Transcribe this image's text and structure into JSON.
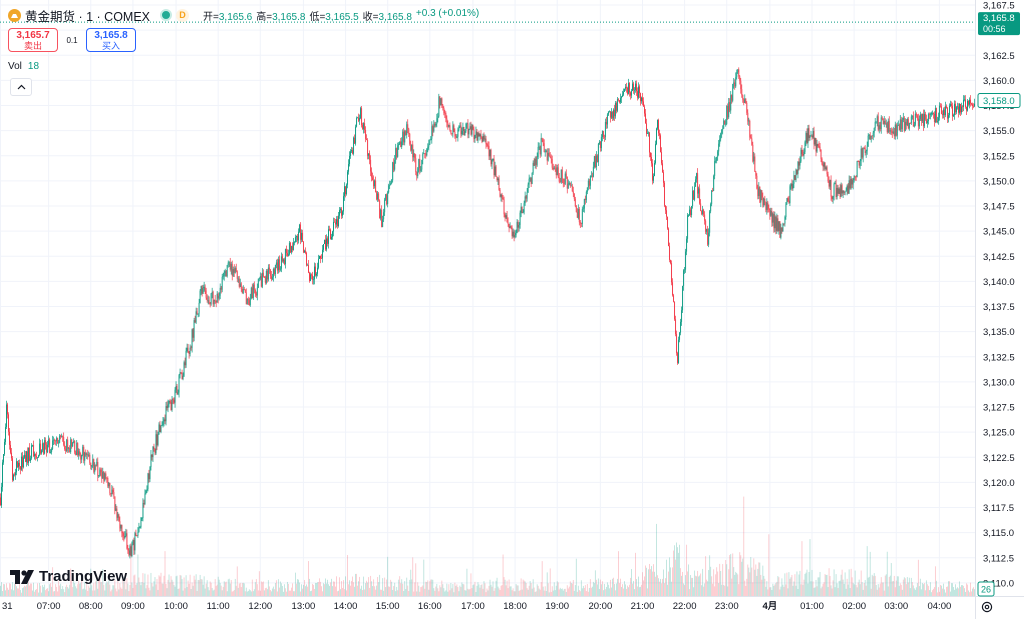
{
  "header": {
    "title": "黄金期货 · 1 · COMEX",
    "open_label": "开=",
    "open": "3,165.6",
    "high_label": "高=",
    "high": "3,165.8",
    "low_label": "低=",
    "low": "3,165.5",
    "close_label": "收=",
    "close": "3,165.8",
    "change": "+0.3 (+0.01%)",
    "status_badge": "D"
  },
  "trade": {
    "sell_price": "3,165.7",
    "sell_label": "卖出",
    "spread": "0.1",
    "buy_price": "3,165.8",
    "buy_label": "买入"
  },
  "volume": {
    "label": "Vol",
    "value": "18",
    "badge": "26"
  },
  "brand": "TradingView",
  "price_tags": {
    "last": "3,165.8",
    "countdown": "00:56",
    "marker": "3,158.0"
  },
  "colors": {
    "up": "#089981",
    "down": "#f23645",
    "last_tag": "#089981",
    "grid": "#f0f3fa"
  },
  "chart_data": {
    "type": "candlestick",
    "grid": true,
    "y_axis_position": "right",
    "ylim": [
      3108.7,
      3168.0
    ],
    "yticks": [
      "3,110.0",
      "3,112.5",
      "3,115.0",
      "3,117.5",
      "3,120.0",
      "3,122.5",
      "3,125.0",
      "3,127.5",
      "3,130.0",
      "3,132.5",
      "3,135.0",
      "3,137.5",
      "3,140.0",
      "3,142.5",
      "3,145.0",
      "3,147.5",
      "3,150.0",
      "3,152.5",
      "3,155.0",
      "3,157.5",
      "3,160.0",
      "3,162.5",
      "3,165.0",
      "3,167.5"
    ],
    "xticks": [
      "31",
      "07:00",
      "08:00",
      "09:00",
      "10:00",
      "11:00",
      "12:00",
      "13:00",
      "14:00",
      "15:00",
      "16:00",
      "17:00",
      "18:00",
      "19:00",
      "20:00",
      "21:00",
      "22:00",
      "23:00",
      "4月",
      "01:00",
      "02:00",
      "03:00",
      "04:00"
    ],
    "xtick_index": [
      0,
      48,
      90,
      132,
      175,
      217,
      259,
      302,
      344,
      386,
      428,
      471,
      513,
      555,
      598,
      640,
      682,
      724,
      767,
      809,
      851,
      893,
      936
    ],
    "bar_count": 972,
    "price_path": [
      [
        0,
        3118.5
      ],
      [
        6,
        3127
      ],
      [
        12,
        3121
      ],
      [
        30,
        3123
      ],
      [
        62,
        3124
      ],
      [
        80,
        3123
      ],
      [
        100,
        3121
      ],
      [
        110,
        3119
      ],
      [
        118,
        3116
      ],
      [
        130,
        3113
      ],
      [
        140,
        3116
      ],
      [
        150,
        3122
      ],
      [
        160,
        3126
      ],
      [
        175,
        3129
      ],
      [
        190,
        3134
      ],
      [
        200,
        3139
      ],
      [
        215,
        3138
      ],
      [
        228,
        3142
      ],
      [
        245,
        3138
      ],
      [
        260,
        3140
      ],
      [
        280,
        3142
      ],
      [
        298,
        3145
      ],
      [
        310,
        3140
      ],
      [
        325,
        3144
      ],
      [
        340,
        3147
      ],
      [
        350,
        3153
      ],
      [
        358,
        3157
      ],
      [
        370,
        3151
      ],
      [
        380,
        3146
      ],
      [
        395,
        3153
      ],
      [
        405,
        3155
      ],
      [
        415,
        3151
      ],
      [
        428,
        3154
      ],
      [
        438,
        3158
      ],
      [
        450,
        3155
      ],
      [
        470,
        3155
      ],
      [
        485,
        3154
      ],
      [
        500,
        3148
      ],
      [
        512,
        3144
      ],
      [
        525,
        3149
      ],
      [
        540,
        3154
      ],
      [
        552,
        3151
      ],
      [
        565,
        3150
      ],
      [
        578,
        3146
      ],
      [
        590,
        3151
      ],
      [
        605,
        3156
      ],
      [
        622,
        3159
      ],
      [
        636,
        3159
      ],
      [
        645,
        3155
      ],
      [
        650,
        3150
      ],
      [
        655,
        3156
      ],
      [
        665,
        3145
      ],
      [
        675,
        3132
      ],
      [
        685,
        3146
      ],
      [
        694,
        3150
      ],
      [
        705,
        3144
      ],
      [
        712,
        3152
      ],
      [
        722,
        3156
      ],
      [
        736,
        3161
      ],
      [
        745,
        3156
      ],
      [
        755,
        3149
      ],
      [
        765,
        3147
      ],
      [
        778,
        3145
      ],
      [
        790,
        3150
      ],
      [
        806,
        3155
      ],
      [
        816,
        3153
      ],
      [
        828,
        3149
      ],
      [
        845,
        3149
      ],
      [
        860,
        3153
      ],
      [
        872,
        3156
      ],
      [
        888,
        3155
      ],
      [
        905,
        3156
      ],
      [
        925,
        3156
      ],
      [
        940,
        3157
      ],
      [
        955,
        3157
      ],
      [
        972,
        3158
      ]
    ],
    "volume_peaks": [
      [
        0,
        25
      ],
      [
        60,
        28
      ],
      [
        120,
        35
      ],
      [
        150,
        45
      ],
      [
        190,
        40
      ],
      [
        232,
        35
      ],
      [
        302,
        30
      ],
      [
        350,
        42
      ],
      [
        395,
        38
      ],
      [
        428,
        30
      ],
      [
        471,
        25
      ],
      [
        498,
        35
      ],
      [
        555,
        28
      ],
      [
        612,
        35
      ],
      [
        662,
        75
      ],
      [
        675,
        100
      ],
      [
        690,
        45
      ],
      [
        712,
        55
      ],
      [
        735,
        88
      ],
      [
        775,
        40
      ],
      [
        830,
        55
      ],
      [
        866,
        45
      ],
      [
        900,
        35
      ],
      [
        936,
        28
      ],
      [
        972,
        25
      ]
    ],
    "volume_max": 100
  }
}
